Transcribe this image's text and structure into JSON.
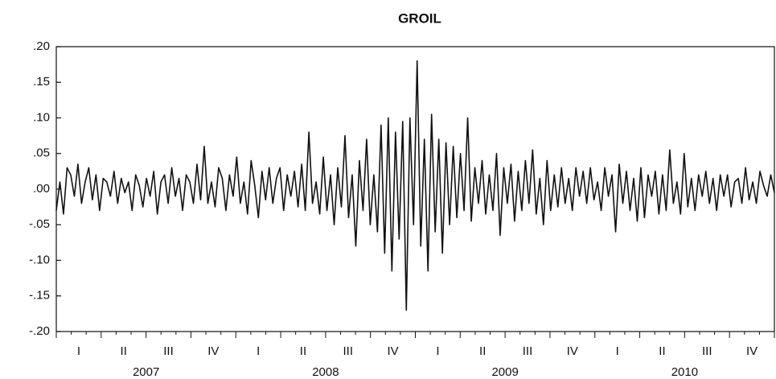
{
  "chart_data": {
    "type": "line",
    "title": "GROIL",
    "color": "#111111",
    "quarters": [
      "I",
      "II",
      "III",
      "IV",
      "I",
      "II",
      "III",
      "IV",
      "I",
      "II",
      "III",
      "IV",
      "I",
      "II",
      "III",
      "IV"
    ],
    "years": [
      "2007",
      "2008",
      "2009",
      "2010"
    ],
    "ylim": [
      -0.2,
      0.2
    ],
    "yticks": [
      {
        "value": 0.2,
        "label": ".20"
      },
      {
        "value": 0.15,
        "label": ".15"
      },
      {
        "value": 0.1,
        "label": ".10"
      },
      {
        "value": 0.05,
        "label": ".05"
      },
      {
        "value": 0,
        "label": ".00"
      },
      {
        "value": -0.05,
        "label": "-.05"
      },
      {
        "value": -0.1,
        "label": "-.10"
      },
      {
        "value": -0.15,
        "label": "-.15"
      },
      {
        "value": -0.2,
        "label": "-.20"
      }
    ],
    "values": [
      -0.03,
      0.01,
      -0.035,
      0.03,
      0.02,
      -0.01,
      0.035,
      -0.02,
      0.01,
      0.03,
      -0.015,
      0.02,
      -0.03,
      0.015,
      0.01,
      -0.01,
      0.025,
      -0.02,
      0.015,
      -0.005,
      0.01,
      -0.03,
      0.02,
      0.005,
      -0.025,
      0.015,
      -0.01,
      0.025,
      -0.035,
      0.01,
      0.02,
      -0.02,
      0.03,
      -0.01,
      0.015,
      -0.03,
      0.02,
      0.01,
      -0.02,
      0.035,
      -0.015,
      0.06,
      -0.02,
      0.01,
      -0.025,
      0.03,
      0.015,
      -0.03,
      0.02,
      -0.01,
      0.045,
      -0.02,
      0.01,
      -0.035,
      0.04,
      0.005,
      -0.04,
      0.025,
      -0.015,
      0.03,
      -0.02,
      0.015,
      0.03,
      -0.03,
      0.02,
      -0.01,
      0.025,
      -0.025,
      0.035,
      -0.03,
      0.08,
      -0.02,
      0.01,
      -0.035,
      0.045,
      -0.03,
      0.02,
      -0.05,
      0.03,
      -0.025,
      0.075,
      -0.04,
      0.02,
      -0.08,
      0.04,
      -0.03,
      0.07,
      -0.05,
      0.02,
      -0.06,
      0.09,
      -0.09,
      0.1,
      -0.115,
      0.08,
      -0.07,
      0.095,
      -0.17,
      0.1,
      -0.05,
      0.18,
      -0.08,
      0.07,
      -0.115,
      0.105,
      -0.06,
      0.07,
      -0.09,
      0.065,
      -0.05,
      0.06,
      -0.04,
      0.05,
      -0.03,
      0.1,
      -0.045,
      0.03,
      -0.02,
      0.04,
      -0.035,
      0.02,
      -0.03,
      0.05,
      -0.065,
      0.03,
      -0.02,
      0.035,
      -0.045,
      0.025,
      -0.03,
      0.04,
      -0.02,
      0.055,
      -0.035,
      0.015,
      -0.05,
      0.04,
      -0.03,
      0.02,
      -0.025,
      0.03,
      -0.02,
      0.015,
      -0.03,
      0.03,
      -0.01,
      0.025,
      -0.02,
      0.03,
      -0.015,
      0.01,
      -0.03,
      0.03,
      -0.01,
      0.02,
      -0.06,
      0.035,
      -0.02,
      0.025,
      -0.03,
      0.015,
      -0.045,
      0.03,
      -0.04,
      0.02,
      -0.01,
      0.025,
      -0.035,
      0.02,
      -0.03,
      0.055,
      -0.02,
      0.01,
      -0.035,
      0.05,
      -0.025,
      0.015,
      -0.03,
      0.02,
      -0.01,
      0.025,
      -0.02,
      0.015,
      -0.03,
      0.02,
      -0.01,
      0.02,
      -0.025,
      0.01,
      0.015,
      -0.02,
      0.03,
      -0.015,
      0.01,
      -0.02,
      0.025,
      0.005,
      -0.01,
      0.02,
      -0.005
    ]
  }
}
